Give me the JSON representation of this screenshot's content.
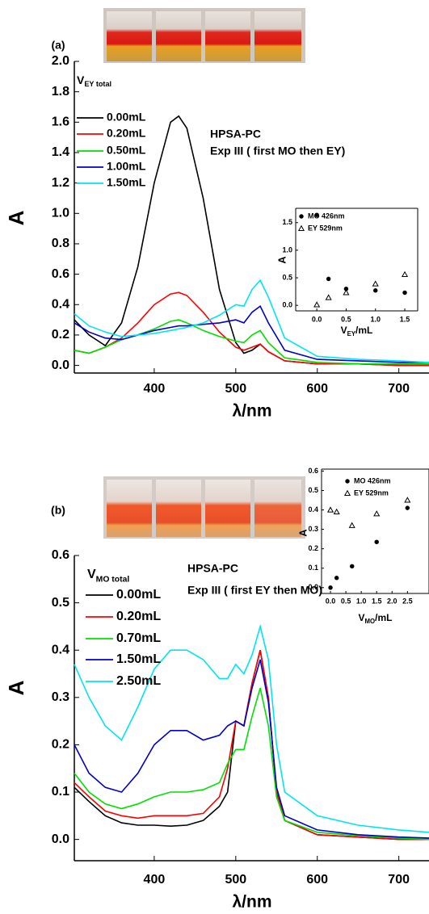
{
  "chart_data": [
    {
      "type": "line",
      "panel_label": "(a)",
      "annotations": [
        "HPSA-PC",
        "Exp III ( first MO then EY)"
      ],
      "legend_title": [
        "V",
        "EY total"
      ],
      "xlabel": "λ/nm",
      "ylabel": "A",
      "x": [
        302,
        320,
        340,
        360,
        380,
        400,
        420,
        430,
        440,
        460,
        480,
        500,
        510,
        520,
        530,
        540,
        560,
        600,
        650,
        700,
        737
      ],
      "xlim": [
        302,
        737
      ],
      "xticks": [
        400,
        500,
        600,
        700
      ],
      "ylim": [
        -0.05,
        2.0
      ],
      "yticks": [
        {
          "value": 0,
          "label": "0.0"
        },
        {
          "value": 0.2,
          "label": "0.2"
        },
        {
          "value": 0.4,
          "label": "0.4"
        },
        {
          "value": 0.6,
          "label": "0.6"
        },
        {
          "value": 0.8,
          "label": "0.8"
        },
        {
          "value": 1.0,
          "label": "1.0"
        },
        {
          "value": 1.2,
          "label": "1.2"
        },
        {
          "value": 1.4,
          "label": "1.4"
        },
        {
          "value": 1.6,
          "label": "1.6"
        },
        {
          "value": 1.8,
          "label": "1.8"
        },
        {
          "value": 2.0,
          "label": "2.0"
        }
      ],
      "series": [
        {
          "name": "0.00mL",
          "color": "#000000",
          "values": [
            0.3,
            0.2,
            0.13,
            0.28,
            0.65,
            1.2,
            1.6,
            1.64,
            1.56,
            1.1,
            0.5,
            0.15,
            0.08,
            0.1,
            0.14,
            0.09,
            0.03,
            0.01,
            0.01,
            0.0,
            0.0
          ]
        },
        {
          "name": "0.20mL",
          "color": "#ff0000",
          "values": [
            0.1,
            0.08,
            0.12,
            0.18,
            0.28,
            0.4,
            0.47,
            0.48,
            0.46,
            0.35,
            0.22,
            0.12,
            0.1,
            0.12,
            0.14,
            0.09,
            0.03,
            0.01,
            0.01,
            0.0,
            0.0
          ]
        },
        {
          "name": "0.50mL",
          "color": "#00e000",
          "values": [
            0.1,
            0.08,
            0.12,
            0.17,
            0.2,
            0.24,
            0.29,
            0.3,
            0.28,
            0.23,
            0.19,
            0.16,
            0.15,
            0.2,
            0.23,
            0.15,
            0.05,
            0.02,
            0.01,
            0.01,
            0.01
          ]
        },
        {
          "name": "1.00mL",
          "color": "#0000cc",
          "values": [
            0.28,
            0.22,
            0.18,
            0.17,
            0.2,
            0.23,
            0.25,
            0.26,
            0.26,
            0.27,
            0.28,
            0.3,
            0.28,
            0.35,
            0.39,
            0.28,
            0.1,
            0.04,
            0.03,
            0.02,
            0.02
          ]
        },
        {
          "name": "1.50mL",
          "color": "#00e5ee",
          "values": [
            0.34,
            0.26,
            0.22,
            0.19,
            0.2,
            0.21,
            0.23,
            0.24,
            0.25,
            0.28,
            0.33,
            0.4,
            0.39,
            0.5,
            0.56,
            0.45,
            0.18,
            0.06,
            0.04,
            0.03,
            0.02
          ]
        }
      ]
    },
    {
      "type": "scatter",
      "xlabel": [
        "V",
        "EY",
        "/mL"
      ],
      "ylabel": "A",
      "xlim": [
        -0.36,
        1.72
      ],
      "xticks": [
        {
          "value": 0,
          "label": "0.0"
        },
        0.5,
        {
          "value": 1,
          "label": "1.0"
        },
        1.5
      ],
      "ylim": [
        -0.1,
        1.76
      ],
      "yticks": [
        {
          "value": 0,
          "label": "0.0"
        },
        0.5,
        {
          "value": 1,
          "label": "1.0"
        },
        1.5
      ],
      "series": [
        {
          "name": "MO 426nm",
          "marker": "circle",
          "color": "#000000",
          "x": [
            0,
            0.2,
            0.5,
            1.0,
            1.5
          ],
          "values": [
            1.64,
            0.48,
            0.3,
            0.27,
            0.23
          ]
        },
        {
          "name": "EY 529nm",
          "marker": "triangle",
          "color": "#000000",
          "x": [
            0,
            0.2,
            0.5,
            1.0,
            1.5
          ],
          "values": [
            0.01,
            0.14,
            0.23,
            0.39,
            0.56
          ]
        }
      ]
    },
    {
      "type": "line",
      "panel_label": "(b)",
      "annotations": [
        "HPSA-PC",
        "Exp III ( first EY then MO)"
      ],
      "legend_title": [
        "V",
        "MO total"
      ],
      "xlabel": "λ/nm",
      "ylabel": "A",
      "x": [
        302,
        320,
        340,
        360,
        380,
        400,
        420,
        440,
        460,
        480,
        490,
        500,
        510,
        520,
        530,
        540,
        550,
        560,
        600,
        650,
        700,
        737
      ],
      "xlim": [
        302,
        737
      ],
      "xticks": [
        400,
        500,
        600,
        700
      ],
      "ylim": [
        -0.045,
        0.6
      ],
      "yticks": [
        {
          "value": 0,
          "label": "0.0"
        },
        0.1,
        0.2,
        0.3,
        0.4,
        0.5,
        0.6
      ],
      "series": [
        {
          "name": "0.00mL",
          "color": "#000000",
          "values": [
            0.11,
            0.08,
            0.05,
            0.035,
            0.03,
            0.03,
            0.028,
            0.03,
            0.04,
            0.07,
            0.1,
            0.25,
            0.24,
            0.33,
            0.4,
            0.3,
            0.1,
            0.04,
            0.01,
            0.005,
            0.0,
            0.0
          ]
        },
        {
          "name": "0.20mL",
          "color": "#ff0000",
          "values": [
            0.12,
            0.09,
            0.06,
            0.05,
            0.045,
            0.05,
            0.05,
            0.05,
            0.055,
            0.09,
            0.15,
            0.25,
            0.24,
            0.33,
            0.4,
            0.3,
            0.1,
            0.04,
            0.01,
            0.005,
            0.0,
            0.0
          ]
        },
        {
          "name": "0.70mL",
          "color": "#00e000",
          "values": [
            0.14,
            0.1,
            0.075,
            0.065,
            0.075,
            0.09,
            0.1,
            0.1,
            0.105,
            0.12,
            0.16,
            0.19,
            0.19,
            0.26,
            0.32,
            0.24,
            0.09,
            0.04,
            0.015,
            0.008,
            0.003,
            0.0
          ]
        },
        {
          "name": "1.50mL",
          "color": "#0000cc",
          "values": [
            0.2,
            0.14,
            0.11,
            0.1,
            0.14,
            0.2,
            0.23,
            0.23,
            0.21,
            0.22,
            0.24,
            0.25,
            0.24,
            0.32,
            0.38,
            0.29,
            0.11,
            0.05,
            0.02,
            0.01,
            0.005,
            0.003
          ]
        },
        {
          "name": "2.50mL",
          "color": "#00e5ee",
          "values": [
            0.37,
            0.3,
            0.24,
            0.21,
            0.28,
            0.36,
            0.4,
            0.4,
            0.38,
            0.34,
            0.34,
            0.37,
            0.35,
            0.39,
            0.45,
            0.38,
            0.2,
            0.1,
            0.05,
            0.03,
            0.02,
            0.015
          ]
        }
      ]
    },
    {
      "type": "scatter",
      "xlabel": [
        "V",
        "MO",
        "/mL"
      ],
      "ylabel": "A",
      "xlim": [
        -0.29,
        3.2
      ],
      "xticks": [
        {
          "value": 0,
          "label": "0.0"
        },
        0.5,
        {
          "value": 1,
          "label": "1.0"
        },
        1.5,
        {
          "value": 2,
          "label": "2.0"
        },
        2.5
      ],
      "ylim": [
        -0.03,
        0.61
      ],
      "yticks": [
        {
          "value": 0,
          "label": "0.0"
        },
        0.1,
        0.2,
        0.3,
        0.4,
        0.5,
        0.6
      ],
      "series": [
        {
          "name": "MO 426nm",
          "marker": "circle",
          "color": "#000000",
          "x": [
            0,
            0.2,
            0.7,
            1.5,
            2.5
          ],
          "values": [
            0.0,
            0.05,
            0.11,
            0.235,
            0.41
          ]
        },
        {
          "name": "EY 529nm",
          "marker": "triangle",
          "color": "#000000",
          "x": [
            0,
            0.2,
            0.7,
            1.5,
            2.5
          ],
          "values": [
            0.4,
            0.39,
            0.32,
            0.38,
            0.45
          ]
        }
      ]
    }
  ]
}
